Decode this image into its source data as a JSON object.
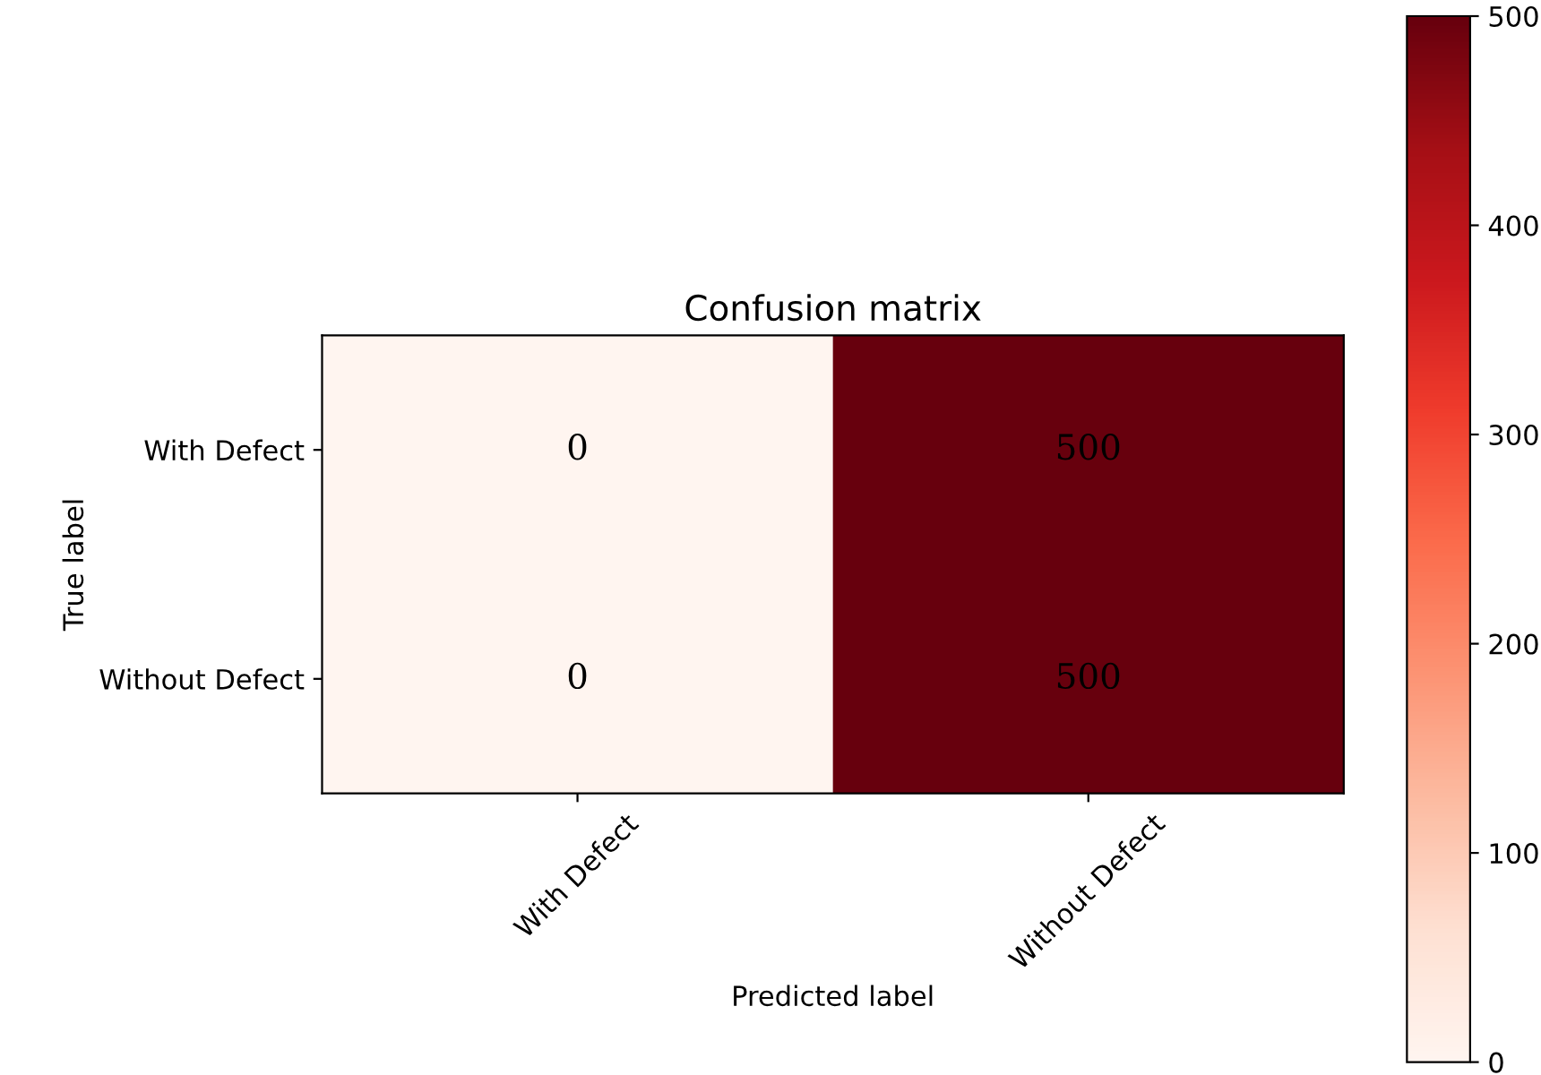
{
  "chart_data": {
    "type": "heatmap",
    "title": "Confusion matrix",
    "xlabel": "Predicted label",
    "ylabel": "True label",
    "categories": [
      "With Defect",
      "Without Defect"
    ],
    "y_categories": [
      "With Defect",
      "Without Defect"
    ],
    "cells": [
      [
        0,
        500
      ],
      [
        0,
        500
      ]
    ],
    "clim": [
      0,
      500
    ],
    "cticks": [
      0,
      100,
      200,
      300,
      400,
      500
    ],
    "data_labels": true
  }
}
